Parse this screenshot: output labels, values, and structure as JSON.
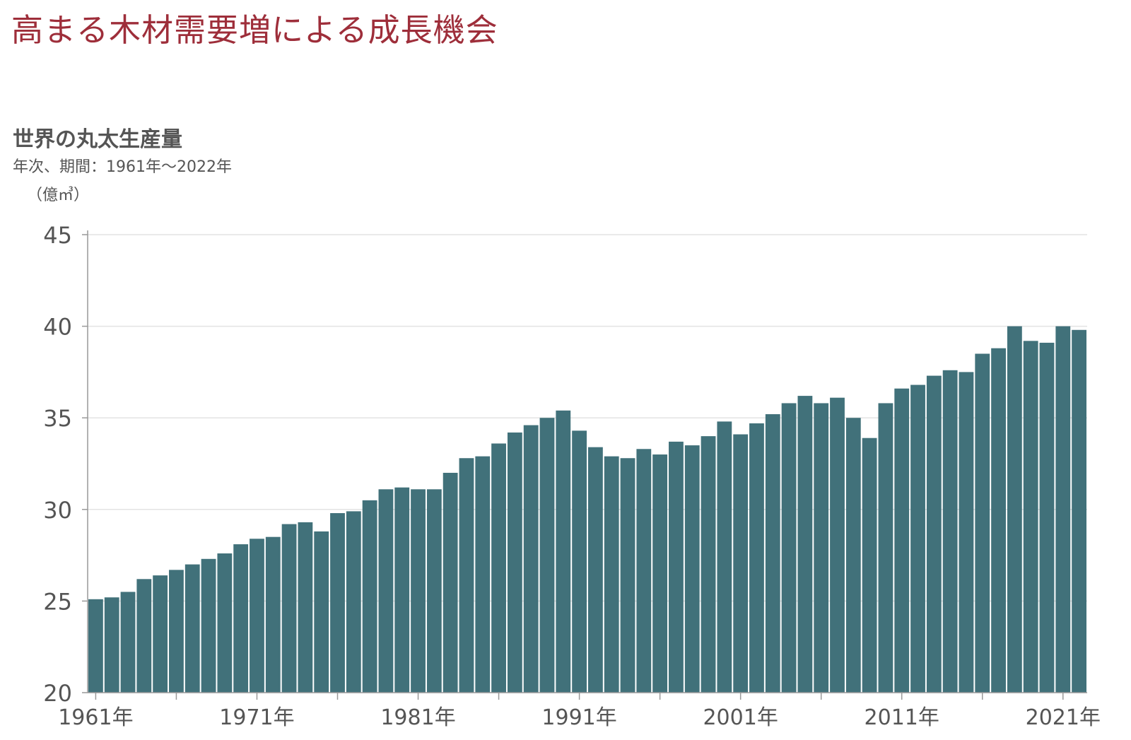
{
  "headline": "高まる木材需要増による成長機会",
  "chart_data": {
    "type": "bar",
    "title": "世界の丸太生産量",
    "subtitle": "年次、期間：1961年〜2022年",
    "ylabel": "（億㎥）",
    "xlabel": "",
    "ylim": [
      20,
      45
    ],
    "yticks": [
      "20",
      "25",
      "30",
      "35",
      "40",
      "45"
    ],
    "xtick_labels": [
      "1961年",
      "1971年",
      "1981年",
      "1991年",
      "2001年",
      "2011年",
      "2021年"
    ],
    "grid": true,
    "bar_color": "#41717a",
    "categories": [
      "1961",
      "1962",
      "1963",
      "1964",
      "1965",
      "1966",
      "1967",
      "1968",
      "1969",
      "1970",
      "1971",
      "1972",
      "1973",
      "1974",
      "1975",
      "1976",
      "1977",
      "1978",
      "1979",
      "1980",
      "1981",
      "1982",
      "1983",
      "1984",
      "1985",
      "1986",
      "1987",
      "1988",
      "1989",
      "1990",
      "1991",
      "1992",
      "1993",
      "1994",
      "1995",
      "1996",
      "1997",
      "1998",
      "1999",
      "2000",
      "2001",
      "2002",
      "2003",
      "2004",
      "2005",
      "2006",
      "2007",
      "2008",
      "2009",
      "2010",
      "2011",
      "2012",
      "2013",
      "2014",
      "2015",
      "2016",
      "2017",
      "2018",
      "2019",
      "2020",
      "2021",
      "2022"
    ],
    "values": [
      25.1,
      25.2,
      25.5,
      26.2,
      26.4,
      26.7,
      27.0,
      27.3,
      27.6,
      28.1,
      28.4,
      28.5,
      29.2,
      29.3,
      28.8,
      29.8,
      29.9,
      30.5,
      31.1,
      31.2,
      31.1,
      31.1,
      32.0,
      32.8,
      32.9,
      33.6,
      34.2,
      34.6,
      35.0,
      35.4,
      34.3,
      33.4,
      32.9,
      32.8,
      33.3,
      33.0,
      33.7,
      33.5,
      34.0,
      34.8,
      34.1,
      34.7,
      35.2,
      35.8,
      36.2,
      35.8,
      36.1,
      35.0,
      33.9,
      35.8,
      36.6,
      36.8,
      37.3,
      37.6,
      37.5,
      38.5,
      38.8,
      40.0,
      39.2,
      39.1,
      40.0,
      39.8
    ]
  }
}
